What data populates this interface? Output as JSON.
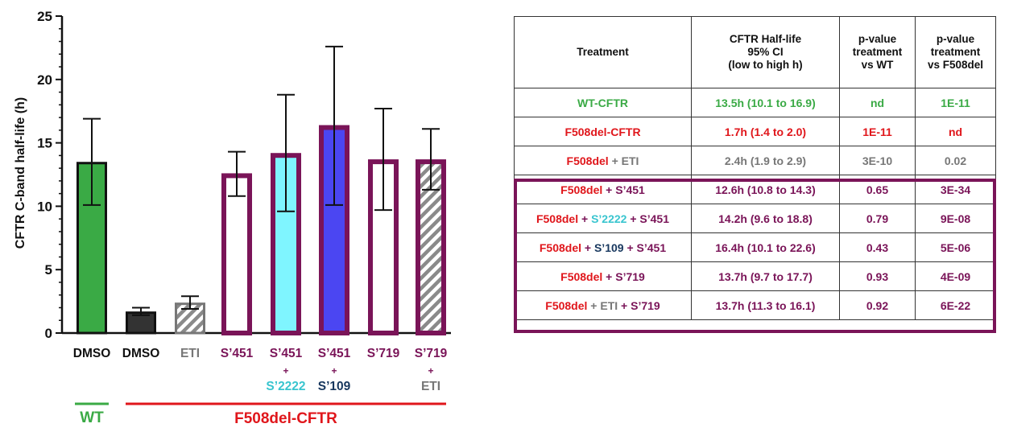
{
  "colors": {
    "wt": "#3aaa45",
    "f508del": "#e0161b",
    "s_purple": "#7a1458",
    "gray": "#777777",
    "cyan": "#39c5cf",
    "navy": "#17375e",
    "fill_wt": "#3aaa45",
    "fill_dmso": "#333333",
    "fill_cyan": "#7ff5ff",
    "fill_blue": "#4b46f2"
  },
  "chart_data": {
    "type": "bar",
    "ylabel": "CFTR C-band half-life (h)",
    "ylim": [
      0,
      25
    ],
    "yticks": [
      "0",
      "5",
      "10",
      "15",
      "20",
      "25"
    ],
    "bars": [
      {
        "label": "DMSO",
        "label2": "",
        "value": 13.5,
        "err_low": 10.1,
        "err_high": 16.9,
        "fill": "solid",
        "fill_color": "#3aaa45",
        "border_color": "#111111",
        "label_color": "#111111"
      },
      {
        "label": "DMSO",
        "label2": "",
        "value": 1.7,
        "err_low": 1.4,
        "err_high": 2.0,
        "fill": "solid",
        "fill_color": "#333333",
        "border_color": "#111111",
        "label_color": "#111111"
      },
      {
        "label": "ETI",
        "label2": "",
        "value": 2.4,
        "err_low": 1.9,
        "err_high": 2.9,
        "fill": "hatch",
        "fill_color": "#777777",
        "border_color": "#777777",
        "label_color": "#777777"
      },
      {
        "label": "S’451",
        "label2": "",
        "value": 12.6,
        "err_low": 10.8,
        "err_high": 14.3,
        "fill": "solid",
        "fill_color": "#ffffff",
        "border_color": "#7a1458",
        "label_color": "#7a1458"
      },
      {
        "label": "S’451",
        "label2": "S’2222",
        "value": 14.2,
        "err_low": 9.6,
        "err_high": 18.8,
        "fill": "solid",
        "fill_color": "#7ff5ff",
        "border_color": "#7a1458",
        "label_color": "#7a1458",
        "label2_color": "#39c5cf"
      },
      {
        "label": "S’451",
        "label2": "S’109",
        "value": 16.4,
        "err_low": 10.1,
        "err_high": 22.6,
        "fill": "solid",
        "fill_color": "#4b46f2",
        "border_color": "#7a1458",
        "label_color": "#7a1458",
        "label2_color": "#17375e"
      },
      {
        "label": "S’719",
        "label2": "",
        "value": 13.7,
        "err_low": 9.7,
        "err_high": 17.7,
        "fill": "solid",
        "fill_color": "#ffffff",
        "border_color": "#7a1458",
        "label_color": "#7a1458"
      },
      {
        "label": "S’719",
        "label2": "ETI",
        "value": 13.7,
        "err_low": 11.3,
        "err_high": 16.1,
        "fill": "hatch",
        "fill_color": "#777777",
        "border_color": "#7a1458",
        "label_color": "#7a1458",
        "label2_color": "#777777"
      }
    ],
    "plus_sign": "+",
    "groups": [
      {
        "label": "WT",
        "color": "#3aaa45"
      },
      {
        "label": "F508del-CFTR",
        "color": "#e0161b"
      }
    ]
  },
  "table": {
    "headers": [
      "Treatment",
      "CFTR Half-life\n95% CI\n(low to high h)",
      "p-value\ntreatment\nvs WT",
      "p-value\ntreatment\nvs F508del"
    ],
    "rows": [
      {
        "treatment": [
          {
            "t": "WT-CFTR",
            "c": "#3aaa45"
          }
        ],
        "halflife": "13.5h (10.1 to 16.9)",
        "pwt": "nd",
        "pf508": "1E-11",
        "color": "#3aaa45"
      },
      {
        "treatment": [
          {
            "t": "F508del-CFTR",
            "c": "#e0161b"
          }
        ],
        "halflife": "1.7h (1.4 to 2.0)",
        "pwt": "1E-11",
        "pf508": "nd",
        "color": "#e0161b"
      },
      {
        "treatment": [
          {
            "t": "F508del",
            "c": "#e0161b"
          },
          {
            "t": " + ",
            "c": "#777777"
          },
          {
            "t": "ETI",
            "c": "#777777"
          }
        ],
        "halflife": "2.4h (1.9 to 2.9)",
        "pwt": "3E-10",
        "pf508": "0.02",
        "color": "#777777"
      },
      {
        "treatment": [
          {
            "t": "F508del",
            "c": "#e0161b"
          },
          {
            "t": " + ",
            "c": "#7a1458"
          },
          {
            "t": "S’451",
            "c": "#7a1458"
          }
        ],
        "halflife": "12.6h (10.8 to 14.3)",
        "pwt": "0.65",
        "pf508": "3E-34",
        "color": "#7a1458"
      },
      {
        "treatment": [
          {
            "t": "F508del",
            "c": "#e0161b"
          },
          {
            "t": " + ",
            "c": "#7a1458"
          },
          {
            "t": "S’2222",
            "c": "#39c5cf"
          },
          {
            "t": " + ",
            "c": "#7a1458"
          },
          {
            "t": "S’451",
            "c": "#7a1458"
          }
        ],
        "halflife": "14.2h (9.6 to 18.8)",
        "pwt": "0.79",
        "pf508": "9E-08",
        "color": "#7a1458"
      },
      {
        "treatment": [
          {
            "t": "F508del",
            "c": "#e0161b"
          },
          {
            "t": " + ",
            "c": "#7a1458"
          },
          {
            "t": "S’109",
            "c": "#17375e"
          },
          {
            "t": " + ",
            "c": "#7a1458"
          },
          {
            "t": "S’451",
            "c": "#7a1458"
          }
        ],
        "halflife": "16.4h (10.1 to 22.6)",
        "pwt": "0.43",
        "pf508": "5E-06",
        "color": "#7a1458"
      },
      {
        "treatment": [
          {
            "t": "F508del",
            "c": "#e0161b"
          },
          {
            "t": " + ",
            "c": "#7a1458"
          },
          {
            "t": "S’719",
            "c": "#7a1458"
          }
        ],
        "halflife": "13.7h (9.7 to 17.7)",
        "pwt": "0.93",
        "pf508": "4E-09",
        "color": "#7a1458"
      },
      {
        "treatment": [
          {
            "t": "F508del",
            "c": "#e0161b"
          },
          {
            "t": " + ",
            "c": "#777777"
          },
          {
            "t": "ETI",
            "c": "#777777"
          },
          {
            "t": " + ",
            "c": "#7a1458"
          },
          {
            "t": "S’719",
            "c": "#7a1458"
          }
        ],
        "halflife": "13.7h (11.3 to 16.1)",
        "pwt": "0.92",
        "pf508": "6E-22",
        "color": "#7a1458"
      }
    ]
  }
}
